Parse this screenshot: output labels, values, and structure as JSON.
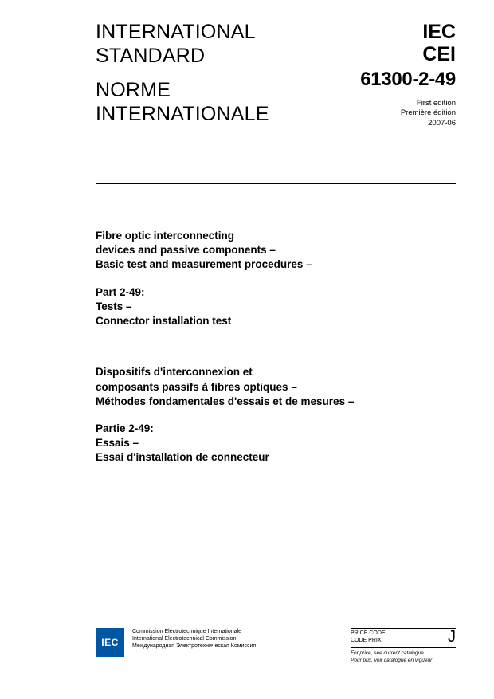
{
  "header": {
    "left": {
      "line1": "INTERNATIONAL",
      "line2": "STANDARD",
      "line3": "NORME",
      "line4": "INTERNATIONALE"
    },
    "right": {
      "org1": "IEC",
      "org2": "CEI",
      "stdnum": "61300-2-49",
      "edition1": "First edition",
      "edition2": "Première édition",
      "date": "2007-06"
    }
  },
  "title": {
    "en": {
      "g1l1": "Fibre optic interconnecting",
      "g1l2": "devices and passive components –",
      "g1l3": "Basic test and measurement procedures –",
      "g2l1": "Part 2-49:",
      "g2l2": "Tests –",
      "g2l3": "Connector installation test"
    },
    "fr": {
      "g1l1": "Dispositifs d'interconnexion et",
      "g1l2": "composants passifs à fibres optiques –",
      "g1l3": "Méthodes fondamentales d'essais et de mesures –",
      "g2l1": "Partie 2-49:",
      "g2l2": "Essais –",
      "g2l3": "Essai d'installation de connecteur"
    }
  },
  "footer": {
    "logo_text": "IEC",
    "commission": {
      "l1": "Commission Electrotechnique Internationale",
      "l2": "International Electrotechnical Commission",
      "l3": "Международная Электротехническая Комиссия"
    },
    "price": {
      "label1": "PRICE CODE",
      "label2": "CODE PRIX",
      "code": "J",
      "note1": "For price, see current catalogue",
      "note2": "Pour prix, voir catalogue en vigueur"
    }
  },
  "colors": {
    "logo_bg": "#0055a4",
    "text": "#000000",
    "background": "#ffffff"
  }
}
